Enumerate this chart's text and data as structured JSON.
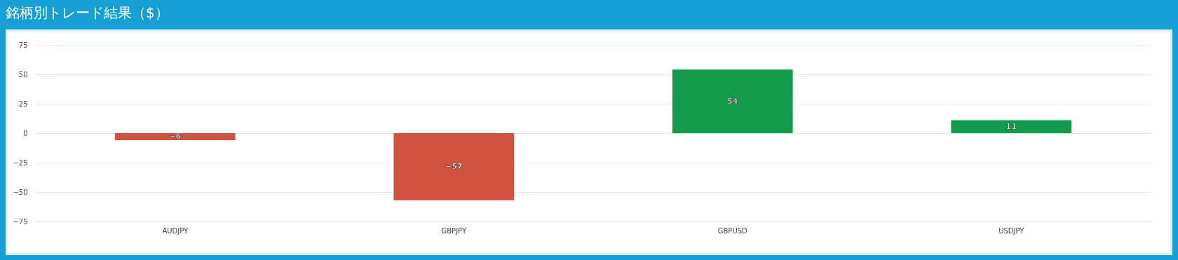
{
  "chart_data": {
    "type": "bar",
    "title": "銘柄別トレード結果（$）",
    "categories": [
      "AUDJPY",
      "GBPJPY",
      "GBPUSD",
      "USDJPY"
    ],
    "values": [
      -6,
      -57,
      54,
      11
    ],
    "colors": [
      "#d05340",
      "#d05340",
      "#129b4a",
      "#129b4a"
    ],
    "ylim": [
      -75,
      75
    ],
    "yticks": [
      -75,
      -50,
      -25,
      0,
      25,
      50,
      75
    ],
    "grid": "y",
    "data_labels": true
  }
}
